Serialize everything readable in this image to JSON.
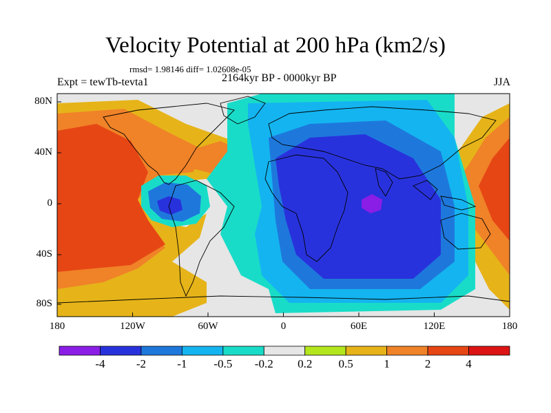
{
  "title": "Velocity Potential at 200 hPa (km2/s)",
  "stats": "rmsd= 1.98146 diff= 1.02608e-05",
  "experiment": "Expt = tewTb-tevta1",
  "period": "2164kyr BP - 0000kyr BP",
  "season": "JJA",
  "lat_labels": [
    "80N",
    "40N",
    "0",
    "40S",
    "80S"
  ],
  "lon_labels": [
    "180",
    "120W",
    "60W",
    "0",
    "60E",
    "120E",
    "180"
  ],
  "colorbar": {
    "labels": [
      "-4",
      "-2",
      "-1",
      "-0.5",
      "-0.2",
      "0.2",
      "0.5",
      "1",
      "2",
      "4"
    ],
    "colors": [
      "#8a1ee6",
      "#2832dc",
      "#1e78dc",
      "#14b4f0",
      "#19dcc8",
      "#e6e6e6",
      "#b4e61e",
      "#e6b419",
      "#f08228",
      "#e64614",
      "#dc1414"
    ]
  }
}
